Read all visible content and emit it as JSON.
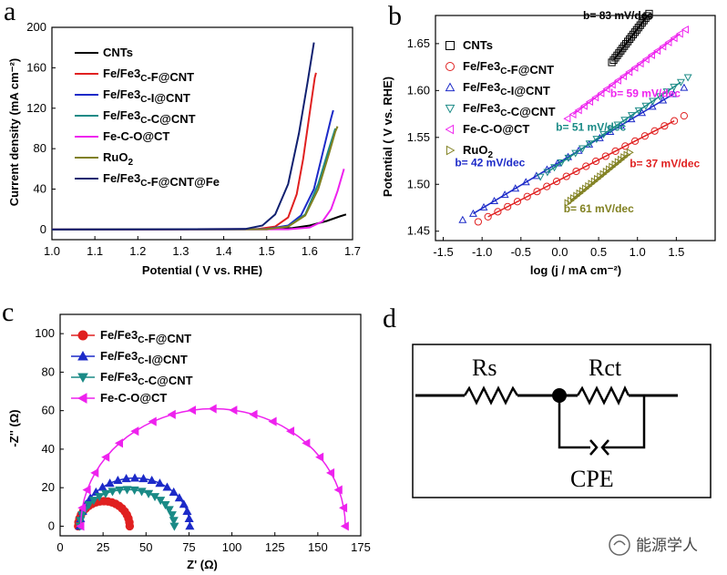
{
  "panels": {
    "a": "a",
    "b": "b",
    "c": "c",
    "d": "d"
  },
  "chart_data": [
    {
      "panel": "a",
      "type": "line",
      "xlabel": "Potential  ( V vs. RHE)",
      "ylabel": "Current density (mA cm⁻²)",
      "xlim": [
        1.0,
        1.7
      ],
      "ylim": [
        -10,
        200
      ],
      "xticks": [
        "1.0",
        "1.1",
        "1.2",
        "1.3",
        "1.4",
        "1.5",
        "1.6",
        "1.7"
      ],
      "xtick_values": [
        1.0,
        1.1,
        1.2,
        1.3,
        1.4,
        1.5,
        1.6,
        1.7
      ],
      "yticks": [
        "0",
        "40",
        "80",
        "120",
        "160",
        "200"
      ],
      "ytick_values": [
        0,
        40,
        80,
        120,
        160,
        200
      ],
      "legend_position": "top-left",
      "series": [
        {
          "name": "CNTs",
          "color": "#000000",
          "points": [
            [
              1.0,
              0
            ],
            [
              1.5,
              0.3
            ],
            [
              1.56,
              1.5
            ],
            [
              1.6,
              4
            ],
            [
              1.64,
              8.5
            ],
            [
              1.67,
              13
            ],
            [
              1.685,
              15
            ]
          ]
        },
        {
          "name": "Fe/Fe3C-F@CNT",
          "color": "#e02020",
          "points": [
            [
              1.0,
              0
            ],
            [
              1.48,
              0.5
            ],
            [
              1.52,
              3
            ],
            [
              1.55,
              12
            ],
            [
              1.57,
              35
            ],
            [
              1.585,
              70
            ],
            [
              1.6,
              115
            ],
            [
              1.612,
              150
            ],
            [
              1.615,
              155
            ]
          ]
        },
        {
          "name": "Fe/Fe3C-I@CNT",
          "color": "#1c2ac8",
          "points": [
            [
              1.0,
              0
            ],
            [
              1.5,
              0.5
            ],
            [
              1.55,
              4
            ],
            [
              1.58,
              14
            ],
            [
              1.61,
              40
            ],
            [
              1.63,
              75
            ],
            [
              1.65,
              110
            ],
            [
              1.655,
              118
            ]
          ]
        },
        {
          "name": "Fe/Fe3C-C@CNT",
          "color": "#1a8a86",
          "points": [
            [
              1.0,
              0
            ],
            [
              1.5,
              0.4
            ],
            [
              1.55,
              3
            ],
            [
              1.59,
              15
            ],
            [
              1.62,
              45
            ],
            [
              1.645,
              80
            ],
            [
              1.66,
              100
            ]
          ]
        },
        {
          "name": "Fe-C-O@CT",
          "color": "#ee22ee",
          "points": [
            [
              1.0,
              0
            ],
            [
              1.55,
              0.3
            ],
            [
              1.6,
              2
            ],
            [
              1.63,
              8
            ],
            [
              1.65,
              20
            ],
            [
              1.665,
              38
            ],
            [
              1.68,
              60
            ]
          ]
        },
        {
          "name": "RuO2",
          "color": "#808020",
          "points": [
            [
              1.0,
              0
            ],
            [
              1.5,
              0.4
            ],
            [
              1.55,
              3
            ],
            [
              1.59,
              14
            ],
            [
              1.62,
              40
            ],
            [
              1.645,
              75
            ],
            [
              1.66,
              97
            ],
            [
              1.665,
              102
            ]
          ]
        },
        {
          "name": "Fe/Fe3C-F@CNT@Fe",
          "color": "#102070",
          "points": [
            [
              1.0,
              0
            ],
            [
              1.45,
              0.5
            ],
            [
              1.49,
              4
            ],
            [
              1.52,
              15
            ],
            [
              1.55,
              45
            ],
            [
              1.575,
              95
            ],
            [
              1.595,
              145
            ],
            [
              1.61,
              185
            ]
          ]
        }
      ]
    },
    {
      "panel": "b",
      "type": "scatter",
      "xlabel": "log (j / mA cm⁻²)",
      "ylabel": "Potential  ( V vs. RHE)",
      "xlim": [
        -1.6,
        2.0
      ],
      "ylim": [
        1.44,
        1.68
      ],
      "xticks": [
        "-1.5",
        "-1.0",
        "-0.5",
        "0.0",
        "0.5",
        "1.0",
        "1.5"
      ],
      "xtick_values": [
        -1.5,
        -1.0,
        -0.5,
        0.0,
        0.5,
        1.0,
        1.5
      ],
      "yticks": [
        "1.45",
        "1.50",
        "1.55",
        "1.60",
        "1.65"
      ],
      "ytick_values": [
        1.45,
        1.5,
        1.55,
        1.6,
        1.65
      ],
      "legend_position": "top-left",
      "series": [
        {
          "name": "CNTs",
          "color": "#000000",
          "marker": "square",
          "x_range": [
            0.67,
            1.15
          ],
          "y_range": [
            1.63,
            1.682
          ],
          "tafel_label": "b= 83 mV/dec",
          "tafel_color": "#000000",
          "tafel_at": [
            0.3,
            1.676
          ]
        },
        {
          "name": "Fe/Fe3C-F@CNT",
          "color": "#e02020",
          "marker": "circle",
          "x_range": [
            -1.05,
            1.6
          ],
          "y_range": [
            1.46,
            1.573
          ],
          "tafel_label": "b= 37 mV/dec",
          "tafel_color": "#e02020",
          "tafel_at": [
            0.9,
            1.518
          ]
        },
        {
          "name": "Fe/Fe3C-I@CNT",
          "color": "#1c2ac8",
          "marker": "triangle-up",
          "x_range": [
            -1.25,
            1.6
          ],
          "y_range": [
            1.462,
            1.603
          ],
          "tafel_label": "b= 42 mV/dec",
          "tafel_color": "#1c2ac8",
          "tafel_at": [
            -1.35,
            1.519
          ]
        },
        {
          "name": "Fe/Fe3C-C@CNT",
          "color": "#1a8a86",
          "marker": "triangle-down",
          "x_range": [
            -0.25,
            1.65
          ],
          "y_range": [
            1.508,
            1.614
          ],
          "tafel_label": "b= 51 mV/dec",
          "tafel_color": "#1a8a86",
          "tafel_at": [
            -0.05,
            1.557
          ]
        },
        {
          "name": "Fe-C-O@CT",
          "color": "#ee22ee",
          "marker": "triangle-left",
          "x_range": [
            0.1,
            1.62
          ],
          "y_range": [
            1.57,
            1.665
          ],
          "tafel_label": "b= 59 mV/dec",
          "tafel_color": "#ee22ee",
          "tafel_at": [
            0.65,
            1.593
          ]
        },
        {
          "name": "RuO2",
          "color": "#808020",
          "marker": "triangle-right",
          "x_range": [
            0.1,
            0.9
          ],
          "y_range": [
            1.48,
            1.534
          ],
          "tafel_label": "b= 61 mV/dec",
          "tafel_color": "#808020",
          "tafel_at": [
            0.05,
            1.47
          ]
        }
      ]
    },
    {
      "panel": "c",
      "type": "scatter",
      "xlabel": "Z' (Ω)",
      "ylabel": "-Z'' (Ω)",
      "xlim": [
        0,
        175
      ],
      "ylim": [
        -5,
        110
      ],
      "xticks": [
        "0",
        "25",
        "50",
        "75",
        "100",
        "125",
        "150",
        "175"
      ],
      "xtick_values": [
        0,
        25,
        50,
        75,
        100,
        125,
        150,
        175
      ],
      "yticks": [
        "0",
        "20",
        "40",
        "60",
        "80",
        "100"
      ],
      "ytick_values": [
        0,
        20,
        40,
        60,
        80,
        100
      ],
      "legend_position": "top-left",
      "series": [
        {
          "name": "Fe/Fe3C-F@CNT",
          "color": "#e02020",
          "marker": "circle",
          "r0": 10.5,
          "r1": 40.5,
          "peak": 13
        },
        {
          "name": "Fe/Fe3C-I@CNT",
          "color": "#1c2ac8",
          "marker": "triangle-up",
          "r0": 11.5,
          "r1": 75.5,
          "peak": 25
        },
        {
          "name": "Fe/Fe3C-C@CNT",
          "color": "#1a8a86",
          "marker": "triangle-down",
          "r0": 11.5,
          "r1": 66.5,
          "peak": 19
        },
        {
          "name": "Fe-C-O@CT",
          "color": "#ee22ee",
          "marker": "triangle-left",
          "r0": 12,
          "r1": 166,
          "peak": 61
        }
      ]
    }
  ],
  "circuit": {
    "rs_label": "Rs",
    "rct_label": "Rct",
    "cpe_label": "CPE"
  },
  "watermark": {
    "text": "能源学人"
  }
}
